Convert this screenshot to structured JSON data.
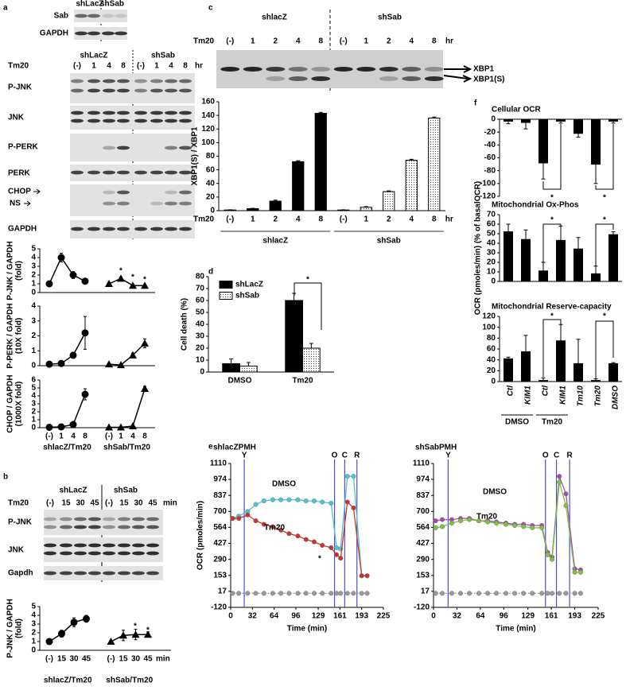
{
  "panels": [
    "a",
    "b",
    "c",
    "d",
    "e",
    "f"
  ],
  "blot_a": {
    "groups": [
      "shLacZ",
      "shSab"
    ],
    "top_rows": [
      "Sab",
      "GAPDH"
    ],
    "treatment": "Tm20",
    "lanes": [
      "(-)",
      "1",
      "4",
      "8",
      "(-)",
      "1",
      "4",
      "8"
    ],
    "unit": "hr",
    "rows": [
      "P-JNK",
      "JNK",
      "P-PERK",
      "PERK",
      "CHOP",
      "GAPDH"
    ],
    "ns": "NS"
  },
  "blot_b": {
    "groups": [
      "shLacZ",
      "shSab"
    ],
    "treatment": "Tm20",
    "lanes": [
      "(-)",
      "15",
      "30",
      "45",
      "(-)",
      "15",
      "30",
      "45"
    ],
    "unit": "min",
    "rows": [
      "P-JNK",
      "JNK",
      "Gapdh"
    ]
  },
  "blot_c": {
    "groups": [
      "shlacZ",
      "shSab"
    ],
    "treatment": "Tm20",
    "lanes": [
      "(-)",
      "1",
      "2",
      "4",
      "8",
      "(-)",
      "1",
      "2",
      "4",
      "8"
    ],
    "unit": "hr",
    "bands": [
      "XBP1",
      "XBP1(S)"
    ]
  },
  "chart_data": [
    {
      "type": "line",
      "ylabel": [
        "P-JNK / GAPDH",
        "(fold)"
      ],
      "ylim": [
        0,
        5
      ],
      "yticks": [
        0,
        1,
        2,
        3,
        4,
        5
      ],
      "series": [
        {
          "color": "#000000",
          "marker": "circle",
          "values": [
            1,
            4,
            2,
            1.3,
            null,
            null,
            null,
            null,
            null
          ],
          "errors": [
            0.1,
            0.5,
            0.4,
            0.2,
            null,
            null,
            null,
            null,
            null
          ]
        },
        {
          "color": "#000000",
          "marker": "triangle",
          "values": [
            null,
            null,
            null,
            null,
            null,
            1,
            1.6,
            0.8,
            0.8
          ],
          "errors": [
            null,
            null,
            null,
            null,
            null,
            0.1,
            0.2,
            0.1,
            0.1
          ]
        }
      ],
      "annotations": [
        "*",
        "*",
        "*"
      ]
    },
    {
      "type": "line",
      "ylabel": [
        "P-PERK / GAPDH",
        "(10X fold)"
      ],
      "ylim": [
        0,
        4
      ],
      "yticks": [
        0,
        1,
        2,
        3,
        4
      ],
      "series": [
        {
          "color": "#000000",
          "marker": "circle",
          "values": [
            0.1,
            0.15,
            0.7,
            2.2,
            null,
            null,
            null,
            null,
            null
          ],
          "errors": [
            0.05,
            0.05,
            0.2,
            1.1,
            null,
            null,
            null,
            null,
            null
          ]
        },
        {
          "color": "#000000",
          "marker": "triangle",
          "values": [
            null,
            null,
            null,
            null,
            null,
            0.1,
            0.05,
            0.7,
            1.5
          ],
          "errors": [
            null,
            null,
            null,
            null,
            null,
            0.05,
            0.05,
            0.15,
            0.3
          ]
        }
      ]
    },
    {
      "type": "line",
      "ylabel": [
        "CHOP / GAPDH",
        "(1000X fold)"
      ],
      "ylim": [
        0,
        6
      ],
      "yticks": [
        0,
        1,
        2,
        3,
        4,
        5,
        6
      ],
      "categories": [
        "(-)",
        "1",
        "4",
        "8",
        null,
        "(-)",
        "1",
        "4",
        "8"
      ],
      "series": [
        {
          "name": "shlacZ/Tm20",
          "color": "#000000",
          "marker": "circle",
          "values": [
            0.05,
            0.1,
            0.4,
            4.2,
            null,
            null,
            null,
            null,
            null
          ],
          "errors": [
            0.05,
            0.05,
            0.1,
            0.7,
            null,
            null,
            null,
            null,
            null
          ]
        },
        {
          "name": "shSab/Tm20",
          "color": "#000000",
          "marker": "triangle",
          "values": [
            null,
            null,
            null,
            null,
            null,
            0.05,
            0.05,
            0.2,
            4.9
          ],
          "errors": [
            null,
            null,
            null,
            null,
            null,
            0.05,
            0.05,
            0.1,
            0.3
          ]
        }
      ]
    },
    {
      "type": "line",
      "ylabel": [
        "P-JNK / GAPDH",
        "(fold)"
      ],
      "ylim": [
        0,
        5
      ],
      "yticks": [
        0,
        1,
        2,
        3,
        4,
        5
      ],
      "categories": [
        "(-)",
        "15",
        "30",
        "45",
        null,
        "(-)",
        "15",
        "30",
        "45"
      ],
      "unit": "min",
      "series": [
        {
          "name": "shlacZ/Tm20",
          "color": "#000000",
          "marker": "circle",
          "values": [
            1,
            1.9,
            3.2,
            3.6,
            null,
            null,
            null,
            null,
            null
          ],
          "errors": [
            0.1,
            0.4,
            0.5,
            0.4,
            null,
            null,
            null,
            null,
            null
          ]
        },
        {
          "name": "shSab/Tm20",
          "color": "#000000",
          "marker": "triangle",
          "values": [
            null,
            null,
            null,
            null,
            null,
            1,
            1.7,
            1.8,
            1.8
          ],
          "errors": [
            null,
            null,
            null,
            null,
            null,
            0.1,
            0.6,
            0.6,
            0.3
          ]
        }
      ],
      "annotations": [
        "*",
        "*"
      ]
    },
    {
      "type": "bar",
      "ylabel": "XBP1(S) / XBP1",
      "ylim": [
        0,
        160
      ],
      "yticks": [
        0,
        20,
        40,
        60,
        80,
        100,
        120,
        140,
        160
      ],
      "treatment": "Tm20",
      "categories": [
        "(-)",
        "1",
        "2",
        "4",
        "8",
        "(-)",
        "1",
        "2",
        "4",
        "8"
      ],
      "unit": "hr",
      "series": [
        {
          "name": "shlacZ",
          "color": "#000000",
          "values": [
            1,
            3,
            14,
            72,
            143,
            null,
            null,
            null,
            null,
            null
          ],
          "errors": [
            0.3,
            0.5,
            1.5,
            1.5,
            1.5,
            null,
            null,
            null,
            null,
            null
          ]
        },
        {
          "name": "shSab",
          "color": "#ffffff",
          "pattern": "dots",
          "values": [
            null,
            null,
            null,
            null,
            null,
            1,
            5,
            28,
            74,
            136
          ],
          "errors": [
            null,
            null,
            null,
            null,
            null,
            0.3,
            1,
            1,
            1.5,
            1.5
          ]
        }
      ]
    },
    {
      "type": "bar",
      "ylabel": "Cell death (%)",
      "ylim": [
        0,
        80
      ],
      "yticks": [
        0,
        10,
        20,
        30,
        40,
        50,
        60,
        70,
        80
      ],
      "categories": [
        "DMSO",
        "Tm20"
      ],
      "legend": "upper left",
      "series": [
        {
          "name": "shLacZ",
          "color": "#000000",
          "values": [
            7,
            60
          ],
          "errors": [
            4,
            6
          ]
        },
        {
          "name": "shSab",
          "color": "#ffffff",
          "pattern": "dots",
          "values": [
            5,
            20
          ],
          "errors": [
            3,
            4
          ]
        }
      ],
      "annotations": [
        "*"
      ]
    },
    {
      "type": "bar",
      "title": "Cellular OCR",
      "ylim": [
        -120,
        0
      ],
      "yticks": [
        0,
        -20,
        -40,
        -60,
        -80,
        -100,
        -120
      ],
      "series": [
        {
          "color": "#000000",
          "values": [
            -3,
            -5,
            -68,
            -3,
            -22,
            -70,
            -3
          ],
          "errors": [
            4,
            10,
            25,
            3,
            6,
            30,
            3
          ]
        }
      ],
      "annotations": [
        "*",
        "*"
      ]
    },
    {
      "type": "bar",
      "title": "Mitochondrial Ox-Phos",
      "ylabel": "OCR (pmoles/min) (% of basalOCR)",
      "ylim": [
        0,
        70
      ],
      "yticks": [
        0,
        10,
        20,
        30,
        40,
        50,
        60,
        70
      ],
      "series": [
        {
          "color": "#000000",
          "values": [
            52,
            44,
            11,
            43,
            34,
            8,
            49
          ],
          "errors": [
            8,
            10,
            9,
            15,
            12,
            8,
            3
          ]
        }
      ],
      "annotations": [
        "*",
        "*"
      ]
    },
    {
      "type": "bar",
      "title": "Mitochondrial Reserve-capacity",
      "ylim": [
        0,
        120
      ],
      "yticks": [
        0,
        20,
        40,
        60,
        80,
        100,
        120
      ],
      "categories": [
        "Ctl",
        "KIM1",
        "Ctl",
        "KIM1",
        "Tm10",
        "Tm20",
        "DMSO"
      ],
      "groups": [
        "DMSO",
        "Tm20"
      ],
      "series": [
        {
          "color": "#000000",
          "values": [
            42,
            55,
            2,
            75,
            33,
            2,
            33
          ],
          "errors": [
            3,
            30,
            5,
            30,
            45,
            3,
            2
          ]
        }
      ],
      "annotations": [
        "*",
        "*"
      ]
    },
    {
      "type": "line",
      "title": "shlacZPMH",
      "xlabel": "Time (min)",
      "ylabel": "OCR (pmoles/min)",
      "xlim": [
        0,
        225
      ],
      "xticks": [
        0,
        32,
        64,
        96,
        129,
        161,
        193,
        225
      ],
      "ylim": [
        -120,
        1110
      ],
      "yticks": [
        -120,
        17,
        153,
        290,
        427,
        564,
        700,
        837,
        974,
        1110
      ],
      "x": [
        3,
        12,
        25,
        37,
        49,
        62,
        74,
        86,
        99,
        111,
        123,
        135,
        148,
        156,
        162,
        172,
        181,
        193,
        201
      ],
      "events": [
        {
          "label": "Y",
          "x": 20
        },
        {
          "label": "O",
          "x": 153
        },
        {
          "label": "C",
          "x": 168
        },
        {
          "label": "R",
          "x": 186
        }
      ],
      "series": [
        {
          "name": "DMSO",
          "color": "#4fc3d0",
          "values": [
            640,
            660,
            700,
            760,
            790,
            800,
            800,
            800,
            800,
            790,
            790,
            780,
            770,
            390,
            380,
            1000,
            1000,
            150,
            150
          ]
        },
        {
          "name": "Tm20",
          "color": "#c4362b",
          "values": [
            640,
            640,
            670,
            620,
            590,
            570,
            540,
            510,
            490,
            460,
            440,
            410,
            390,
            330,
            300,
            780,
            730,
            150,
            150
          ]
        },
        {
          "color": "#999999",
          "values": [
            0,
            0,
            0,
            0,
            0,
            0,
            0,
            0,
            0,
            0,
            0,
            0,
            0,
            0,
            0,
            0,
            0,
            0,
            0
          ]
        }
      ],
      "annotations": [
        "*"
      ]
    },
    {
      "type": "line",
      "title": "shSabPMH",
      "xlabel": "Time (min)",
      "xlim": [
        0,
        225
      ],
      "xticks": [
        0,
        32,
        64,
        96,
        129,
        161,
        193,
        225
      ],
      "ylim": [
        -120,
        1110
      ],
      "yticks": [
        -120,
        17,
        153,
        290,
        427,
        564,
        700,
        837,
        974,
        1110
      ],
      "x": [
        3,
        12,
        25,
        37,
        49,
        62,
        74,
        86,
        99,
        111,
        123,
        135,
        148,
        156,
        162,
        172,
        181,
        193,
        201
      ],
      "events": [
        {
          "label": "Y",
          "x": 20
        },
        {
          "label": "O",
          "x": 153
        },
        {
          "label": "C",
          "x": 168
        },
        {
          "label": "R",
          "x": 186
        }
      ],
      "series": [
        {
          "name": "DMSO",
          "color": "#a64ca6",
          "values": [
            620,
            630,
            630,
            640,
            640,
            620,
            620,
            610,
            600,
            590,
            590,
            580,
            580,
            350,
            310,
            1000,
            850,
            210,
            200
          ]
        },
        {
          "name": "Tm20",
          "color": "#7cc242",
          "values": [
            560,
            570,
            600,
            620,
            630,
            620,
            610,
            600,
            590,
            580,
            570,
            560,
            560,
            330,
            290,
            950,
            750,
            180,
            180
          ]
        },
        {
          "color": "#999999",
          "values": [
            0,
            0,
            0,
            0,
            0,
            0,
            0,
            0,
            0,
            0,
            0,
            0,
            0,
            0,
            0,
            0,
            0,
            0,
            0
          ]
        }
      ]
    }
  ]
}
